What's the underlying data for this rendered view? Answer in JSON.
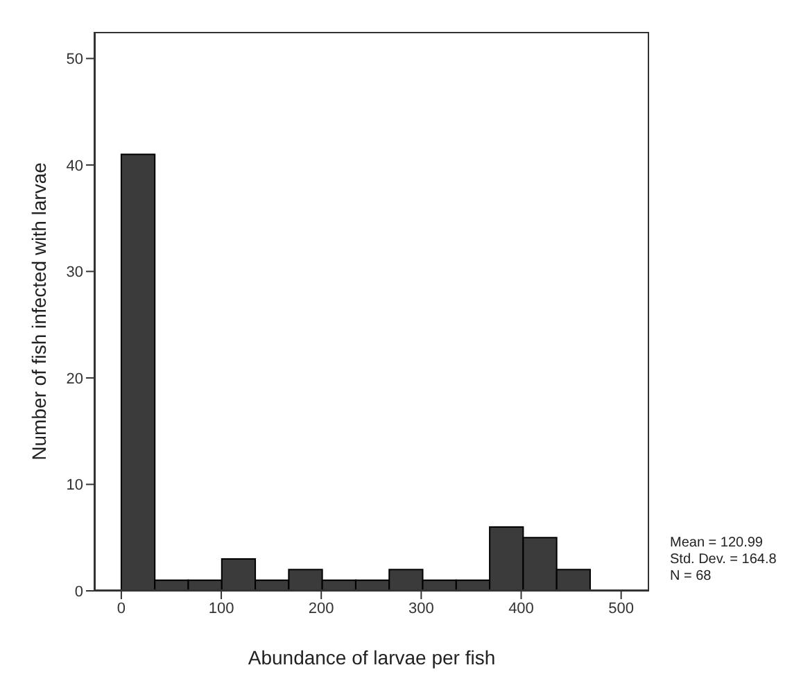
{
  "chart_data": {
    "type": "histogram",
    "xlabel": "Abundance of larvae per fish",
    "ylabel": "Number of fish infected with larvae",
    "bins": [
      0,
      33.5,
      67,
      100.5,
      134,
      167.5,
      201,
      234.5,
      268,
      301.5,
      335,
      368.5,
      402,
      435.5,
      469
    ],
    "values": [
      41,
      1,
      1,
      3,
      1,
      2,
      1,
      1,
      2,
      1,
      1,
      6,
      5,
      2
    ],
    "color": "#3b3b3b",
    "xlim": [
      -27,
      528
    ],
    "xticks": [
      0,
      100,
      200,
      300,
      400,
      500
    ],
    "ylim": [
      0,
      52.5
    ],
    "yticks": [
      0,
      10,
      20,
      30,
      40,
      50
    ],
    "annotations": [
      "Mean = 120.99",
      "Std. Dev. = 164.8",
      "N = 68"
    ]
  }
}
